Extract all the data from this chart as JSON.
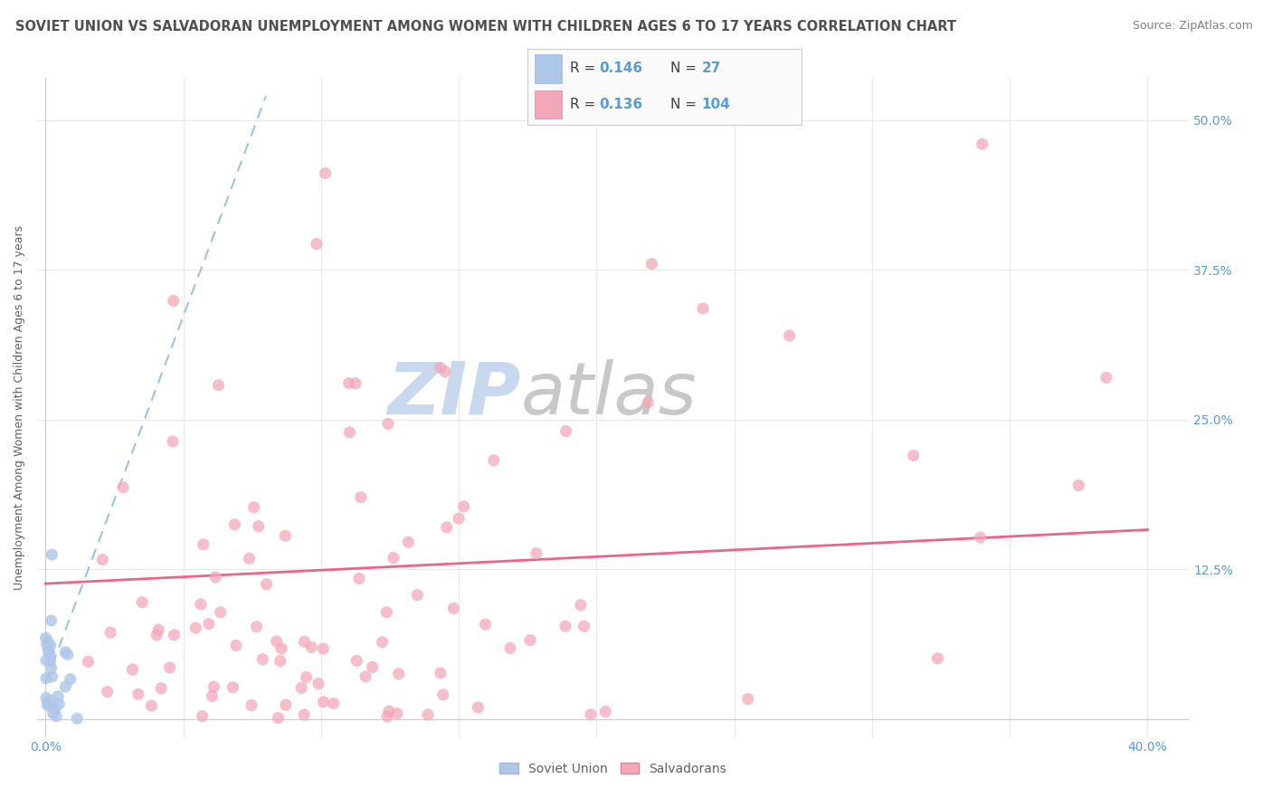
{
  "title": "SOVIET UNION VS SALVADORAN UNEMPLOYMENT AMONG WOMEN WITH CHILDREN AGES 6 TO 17 YEARS CORRELATION CHART",
  "source": "Source: ZipAtlas.com",
  "ylabel": "Unemployment Among Women with Children Ages 6 to 17 years",
  "legend_entries": [
    {
      "label": "Soviet Union",
      "color": "#aec6e8",
      "R": "0.146",
      "N": "27"
    },
    {
      "label": "Salvadorans",
      "color": "#f4a7b9",
      "R": "0.136",
      "N": "104"
    }
  ],
  "watermark_zip": "ZIP",
  "watermark_atlas": "atlas",
  "watermark_color_zip": "#c8d8ee",
  "watermark_color_atlas": "#c8c8c8",
  "background_color": "#ffffff",
  "grid_color": "#e8e8e8",
  "soviet_scatter_color": "#aec6e8",
  "salvadoran_scatter_color": "#f4a7b9",
  "soviet_trend_color": "#7bafd4",
  "salvadoran_trend_color": "#e8547a",
  "title_color": "#505050",
  "source_color": "#808080",
  "axis_label_color": "#606060",
  "tick_label_color": "#5b9bd5",
  "xlim": [
    -0.003,
    0.415
  ],
  "ylim": [
    -0.015,
    0.535
  ]
}
